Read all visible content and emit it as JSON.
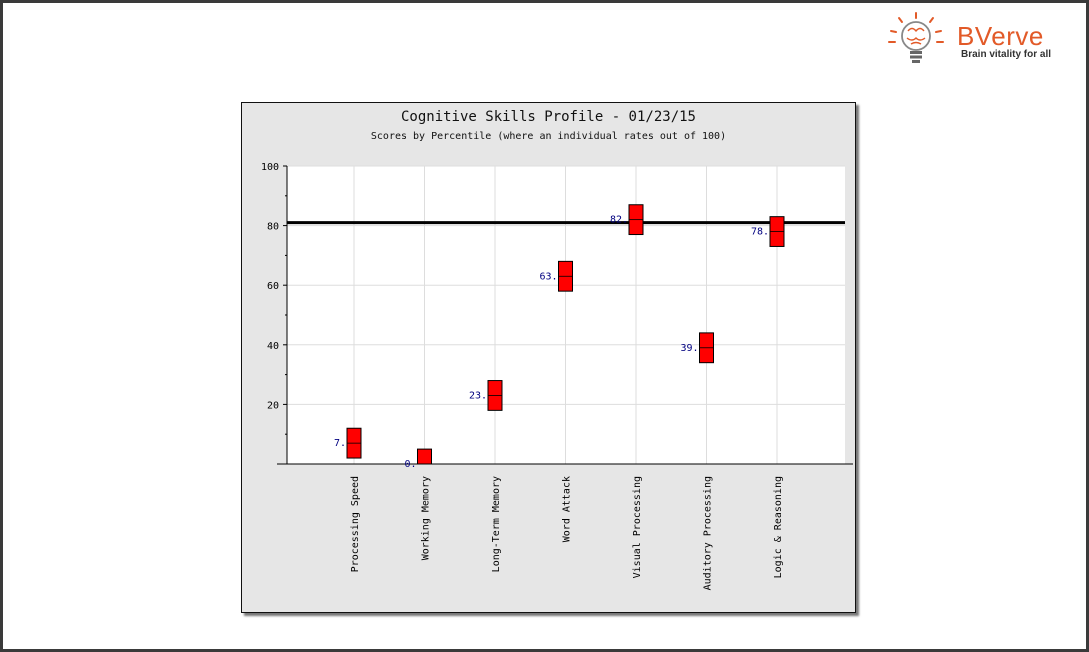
{
  "brand": {
    "name": "BVerve",
    "tagline": "Brain vitality for all",
    "accent_color": "#e25a28",
    "icon": "lightbulb-brain-icon"
  },
  "chart_data": {
    "type": "scatter",
    "title": "Cognitive Skills Profile - 01/23/15",
    "subtitle": "Scores by Percentile (where an individual rates out of 100)",
    "xlabel": "",
    "ylabel": "",
    "ylim": [
      0,
      100
    ],
    "yticks": [
      20,
      40,
      60,
      80,
      100
    ],
    "grid": true,
    "reference_line": 81,
    "categories": [
      "Processing Speed",
      "Working Memory",
      "Long-Term Memory",
      "Word Attack",
      "Visual Processing",
      "Auditory Processing",
      "Logic & Reasoning"
    ],
    "values": [
      7,
      0,
      23,
      63,
      82,
      39,
      78
    ],
    "value_labels": [
      "7.",
      "0.",
      "23.",
      "63.",
      "82.",
      "39.",
      "78."
    ],
    "marker_range": 5,
    "marker_color": "#ff0000",
    "label_color": "#000080"
  }
}
